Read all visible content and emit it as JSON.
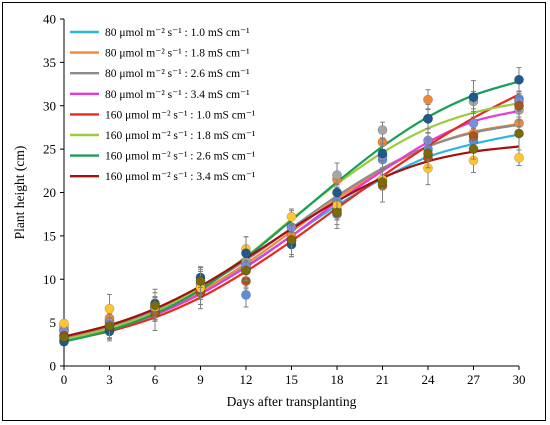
{
  "chart_data": {
    "type": "scatter",
    "xlabel": "Days after transplanting",
    "ylabel": "Plant height  (cm)",
    "xlim": [
      0,
      30
    ],
    "ylim": [
      0,
      40
    ],
    "x_ticks": [
      0,
      3,
      6,
      9,
      12,
      15,
      18,
      21,
      24,
      27,
      30
    ],
    "y_ticks": [
      0,
      5,
      10,
      15,
      20,
      25,
      30,
      35,
      40
    ],
    "grid": false,
    "legend_position": "top-left",
    "trend": "sigmoid fitted curves",
    "series": [
      {
        "name": "80 μmol m⁻² s⁻¹ : 1.0 mS cm⁻¹",
        "color": "#29b6e0",
        "point_color": "#5b8fd6",
        "points": [
          [
            0,
            3.0
          ],
          [
            3,
            5.2
          ],
          [
            6,
            6.5
          ],
          [
            9,
            8.5
          ],
          [
            12,
            8.2
          ],
          [
            15,
            14.5
          ],
          [
            18,
            17.5
          ],
          [
            21,
            23.8
          ],
          [
            24,
            25.0
          ],
          [
            27,
            26.0
          ],
          [
            30,
            30.8
          ]
        ],
        "curve": [
          [
            0,
            3.1
          ],
          [
            3,
            4.3
          ],
          [
            6,
            6.0
          ],
          [
            9,
            8.4
          ],
          [
            12,
            11.5
          ],
          [
            15,
            15.0
          ],
          [
            18,
            18.5
          ],
          [
            21,
            21.6
          ],
          [
            24,
            24.1
          ],
          [
            27,
            25.6
          ],
          [
            30,
            26.7
          ]
        ]
      },
      {
        "name": "80 μmol m⁻² s⁻¹ : 1.8 mS cm⁻¹",
        "color": "#f0883a",
        "point_color": "#f0883a",
        "points": [
          [
            0,
            4.2
          ],
          [
            3,
            5.5
          ],
          [
            6,
            6.8
          ],
          [
            9,
            8.8
          ],
          [
            12,
            11.0
          ],
          [
            15,
            15.0
          ],
          [
            18,
            21.5
          ],
          [
            21,
            25.8
          ],
          [
            24,
            30.7
          ],
          [
            27,
            26.8
          ],
          [
            30,
            28.0
          ]
        ],
        "curve": [
          [
            0,
            3.2
          ],
          [
            3,
            4.4
          ],
          [
            6,
            6.1
          ],
          [
            9,
            8.6
          ],
          [
            12,
            11.8
          ],
          [
            15,
            15.5
          ],
          [
            18,
            19.3
          ],
          [
            21,
            22.6
          ],
          [
            24,
            25.3
          ],
          [
            27,
            27.0
          ],
          [
            30,
            27.9
          ]
        ]
      },
      {
        "name": "80 μmol m⁻² s⁻¹ : 2.6 mS cm⁻¹",
        "color": "#8c8c8c",
        "point_color": "#a6a6a6",
        "points": [
          [
            0,
            4.5
          ],
          [
            3,
            5.0
          ],
          [
            6,
            6.8
          ],
          [
            9,
            9.5
          ],
          [
            12,
            12.0
          ],
          [
            15,
            16.0
          ],
          [
            18,
            22.0
          ],
          [
            21,
            27.2
          ],
          [
            24,
            28.5
          ],
          [
            27,
            30.5
          ],
          [
            30,
            29.5
          ]
        ],
        "curve": [
          [
            0,
            3.3
          ],
          [
            3,
            4.6
          ],
          [
            6,
            6.4
          ],
          [
            9,
            9.0
          ],
          [
            12,
            12.2
          ],
          [
            15,
            15.9
          ],
          [
            18,
            19.6
          ],
          [
            21,
            22.8
          ],
          [
            24,
            25.3
          ],
          [
            27,
            26.9
          ],
          [
            30,
            27.8
          ]
        ]
      },
      {
        "name": "80 μmol m⁻² s⁻¹ : 3.4 mS cm⁻¹",
        "color": "#e83ad6",
        "point_color": "#7b8fd8",
        "points": [
          [
            0,
            4.0
          ],
          [
            3,
            4.8
          ],
          [
            6,
            6.6
          ],
          [
            9,
            9.0
          ],
          [
            12,
            11.5
          ],
          [
            15,
            16.0
          ],
          [
            18,
            19.0
          ],
          [
            21,
            24.2
          ],
          [
            24,
            26.0
          ],
          [
            27,
            28.0
          ],
          [
            30,
            30.5
          ]
        ],
        "curve": [
          [
            0,
            3.0
          ],
          [
            3,
            4.2
          ],
          [
            6,
            5.9
          ],
          [
            9,
            8.3
          ],
          [
            12,
            11.4
          ],
          [
            15,
            15.0
          ],
          [
            18,
            18.9
          ],
          [
            21,
            22.5
          ],
          [
            24,
            25.8
          ],
          [
            27,
            28.2
          ],
          [
            30,
            29.4
          ]
        ]
      },
      {
        "name": "160 μmol m⁻² s⁻¹ : 1.0 mS cm⁻¹",
        "color": "#e52a1e",
        "point_color": "#a8541e",
        "points": [
          [
            0,
            3.5
          ],
          [
            3,
            4.4
          ],
          [
            6,
            6.0
          ],
          [
            9,
            8.5
          ],
          [
            12,
            9.8
          ],
          [
            15,
            14.5
          ],
          [
            18,
            18.0
          ],
          [
            21,
            20.8
          ],
          [
            24,
            24.0
          ],
          [
            27,
            26.5
          ],
          [
            30,
            30.0
          ]
        ],
        "curve": [
          [
            0,
            2.9
          ],
          [
            3,
            4.0
          ],
          [
            6,
            5.6
          ],
          [
            9,
            7.9
          ],
          [
            12,
            10.9
          ],
          [
            15,
            14.4
          ],
          [
            18,
            18.2
          ],
          [
            21,
            21.9
          ],
          [
            24,
            25.4
          ],
          [
            27,
            28.6
          ],
          [
            30,
            31.3
          ]
        ]
      },
      {
        "name": "160 μmol m⁻² s⁻¹ : 1.8 mS cm⁻¹",
        "color": "#9ccc3c",
        "point_color": "#ffc52e",
        "points": [
          [
            0,
            4.9
          ],
          [
            3,
            6.6
          ],
          [
            6,
            6.8
          ],
          [
            9,
            9.0
          ],
          [
            12,
            13.5
          ],
          [
            15,
            17.2
          ],
          [
            18,
            18.5
          ],
          [
            21,
            21.5
          ],
          [
            24,
            22.8
          ],
          [
            27,
            23.7
          ],
          [
            30,
            24.0
          ]
        ],
        "curve": [
          [
            0,
            3.0
          ],
          [
            3,
            4.3
          ],
          [
            6,
            6.2
          ],
          [
            9,
            9.0
          ],
          [
            12,
            12.6
          ],
          [
            15,
            16.9
          ],
          [
            18,
            21.0
          ],
          [
            21,
            24.6
          ],
          [
            24,
            27.4
          ],
          [
            27,
            29.2
          ],
          [
            30,
            30.3
          ]
        ]
      },
      {
        "name": "160 μmol m⁻² s⁻¹ : 2.6 mS cm⁻¹",
        "color": "#1a9e58",
        "point_color": "#1e5a8c",
        "points": [
          [
            0,
            2.8
          ],
          [
            3,
            4.0
          ],
          [
            6,
            7.2
          ],
          [
            9,
            10.2
          ],
          [
            12,
            13.0
          ],
          [
            15,
            14.0
          ],
          [
            18,
            20.0
          ],
          [
            21,
            24.5
          ],
          [
            24,
            28.5
          ],
          [
            27,
            31.0
          ],
          [
            30,
            33.0
          ]
        ],
        "curve": [
          [
            0,
            2.8
          ],
          [
            3,
            4.1
          ],
          [
            6,
            6.0
          ],
          [
            9,
            8.8
          ],
          [
            12,
            12.5
          ],
          [
            15,
            16.8
          ],
          [
            18,
            21.2
          ],
          [
            21,
            25.3
          ],
          [
            24,
            28.7
          ],
          [
            27,
            31.2
          ],
          [
            30,
            32.8
          ]
        ]
      },
      {
        "name": "160 μmol m⁻² s⁻¹ : 3.4 mS cm⁻¹",
        "color": "#a50f0f",
        "point_color": "#7a6a0a",
        "points": [
          [
            0,
            3.3
          ],
          [
            3,
            4.6
          ],
          [
            6,
            7.0
          ],
          [
            9,
            9.8
          ],
          [
            12,
            11.0
          ],
          [
            15,
            14.5
          ],
          [
            18,
            17.7
          ],
          [
            21,
            21.2
          ],
          [
            24,
            24.5
          ],
          [
            27,
            25.0
          ],
          [
            30,
            26.8
          ]
        ],
        "curve": [
          [
            0,
            3.4
          ],
          [
            3,
            4.7
          ],
          [
            6,
            6.6
          ],
          [
            9,
            9.2
          ],
          [
            12,
            12.4
          ],
          [
            15,
            15.8
          ],
          [
            18,
            19.0
          ],
          [
            21,
            21.7
          ],
          [
            24,
            23.6
          ],
          [
            27,
            24.7
          ],
          [
            30,
            25.3
          ]
        ]
      }
    ]
  }
}
